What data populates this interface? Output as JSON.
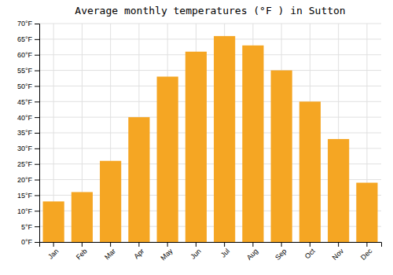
{
  "chart_data": {
    "type": "bar",
    "title": "Average monthly temperatures (°F ) in Sutton",
    "categories": [
      "Jan",
      "Feb",
      "Mar",
      "Apr",
      "May",
      "Jun",
      "Jul",
      "Aug",
      "Sep",
      "Oct",
      "Nov",
      "Dec"
    ],
    "values": [
      13,
      16,
      26,
      40,
      53,
      61,
      66,
      63,
      55,
      45,
      33,
      19
    ],
    "color": "#F5A623",
    "ylim": [
      0,
      70
    ],
    "yticks": [
      {
        "value": 0,
        "label": "0°F"
      },
      {
        "value": 5,
        "label": "5°F"
      },
      {
        "value": 10,
        "label": "10°F"
      },
      {
        "value": 15,
        "label": "15°F"
      },
      {
        "value": 20,
        "label": "20°F"
      },
      {
        "value": 25,
        "label": "25°F"
      },
      {
        "value": 30,
        "label": "30°F"
      },
      {
        "value": 35,
        "label": "35°F"
      },
      {
        "value": 40,
        "label": "40°F"
      },
      {
        "value": 45,
        "label": "45°F"
      },
      {
        "value": 50,
        "label": "50°F"
      },
      {
        "value": 55,
        "label": "55°F"
      },
      {
        "value": 60,
        "label": "60°F"
      },
      {
        "value": 65,
        "label": "65°F"
      },
      {
        "value": 70,
        "label": "70°F"
      }
    ],
    "grid": true
  }
}
